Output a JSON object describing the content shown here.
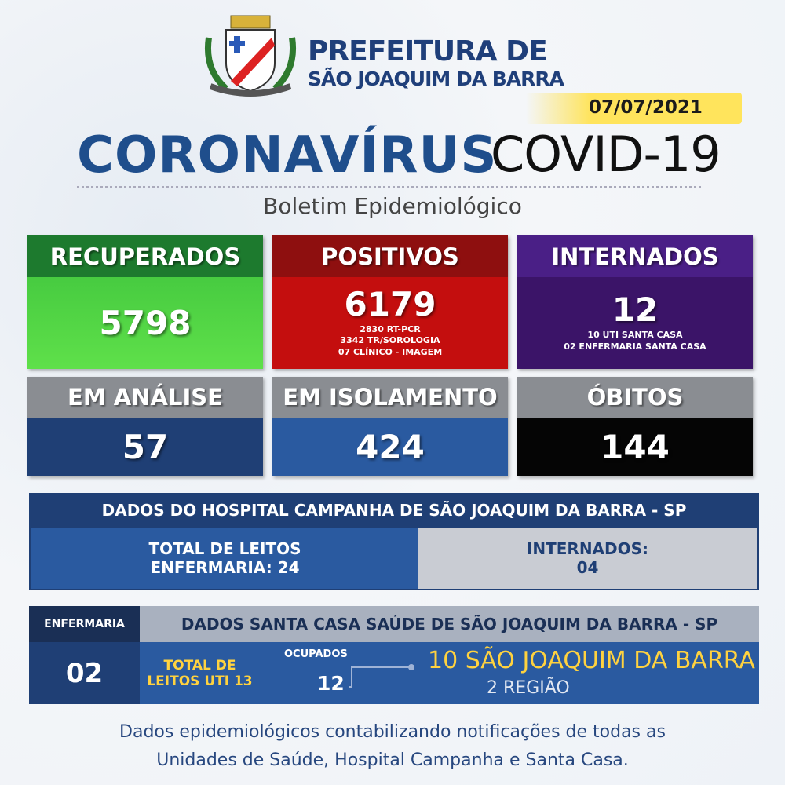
{
  "header": {
    "title_line1": "PREFEITURA DE",
    "title_line2": "SÃO JOAQUIM DA BARRA",
    "date": "07/07/2021",
    "headline": "CORONAVÍRUS",
    "headline_suffix": "COVID-19",
    "subtitle": "Boletim Epidemiológico"
  },
  "cards": [
    {
      "label": "RECUPERADOS",
      "value": 5798
    },
    {
      "label": "POSITIVOS",
      "value": 6179,
      "details": [
        "2830 RT-PCR",
        "3342 TR/SOROLOGIA",
        "07 CLÍNICO - IMAGEM"
      ]
    },
    {
      "label": "INTERNADOS",
      "value": 12,
      "details": [
        "10 UTI SANTA CASA",
        "02 ENFERMARIA SANTA CASA"
      ]
    },
    {
      "label": "EM ANÁLISE",
      "value": 57
    },
    {
      "label": "EM ISOLAMENTO",
      "value": 424
    },
    {
      "label": "ÓBITOS",
      "value": 144
    }
  ],
  "hospital_campanha": {
    "title": "DADOS DO HOSPITAL CAMPANHA DE SÃO JOAQUIM DA BARRA - SP",
    "beds_line1": "TOTAL DE LEITOS",
    "beds_line2": "ENFERMARIA: 24",
    "admitted_label": "INTERNADOS:",
    "admitted_value": "04"
  },
  "santa_casa": {
    "ward_label": "ENFERMARIA",
    "ward_value": "02",
    "title": "DADOS SANTA CASA SAÚDE DE SÃO JOAQUIM DA BARRA - SP",
    "icu_line1": "TOTAL DE",
    "icu_line2": "LEITOS UTI 13",
    "occupied_label": "OCUPADOS",
    "occupied_value": "12",
    "origin_line1": "10 SÃO JOAQUIM DA BARRA",
    "origin_line2": "2 REGIÃO"
  },
  "footer": {
    "line1": "Dados epidemiológicos contabilizando notificações de todas as",
    "line2": "Unidades de Saúde, Hospital Campanha e Santa Casa."
  }
}
